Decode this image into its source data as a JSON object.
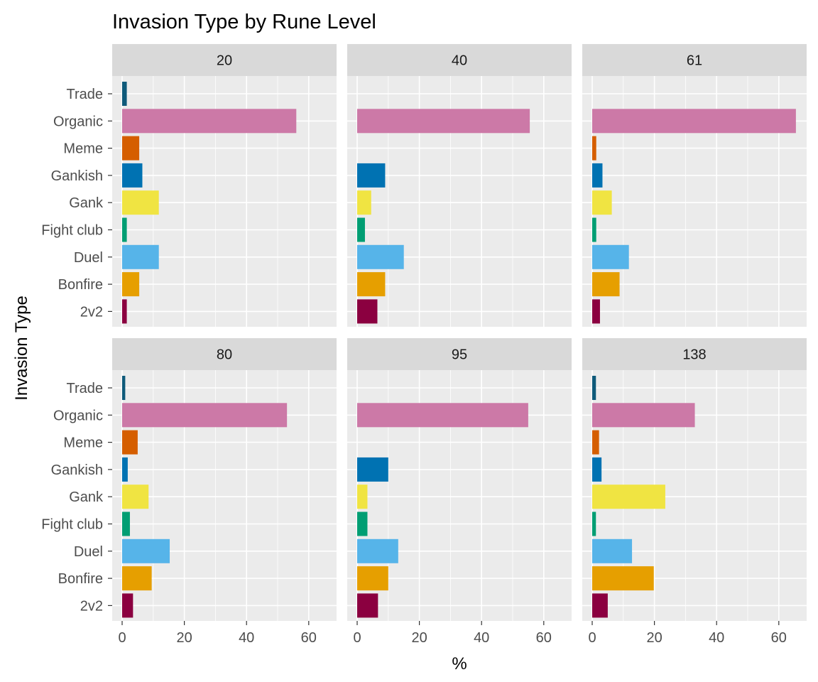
{
  "chart_data": {
    "type": "bar",
    "orientation": "horizontal",
    "title": "Invasion Type by Rune Level",
    "xlabel": "%",
    "ylabel": "Invasion Type",
    "xlim": [
      0,
      70
    ],
    "xticks": [
      0,
      20,
      40,
      60
    ],
    "grid": true,
    "legend": "none",
    "facet_ncol": 3,
    "categories": [
      "Trade",
      "Organic",
      "Meme",
      "Gankish",
      "Gank",
      "Fight club",
      "Duel",
      "Bonfire",
      "2v2"
    ],
    "colors": {
      "Trade": "#0F5A7A",
      "Organic": "#CC79A7",
      "Meme": "#D55E00",
      "Gankish": "#0072B2",
      "Gank": "#F0E442",
      "Fight club": "#009E73",
      "Duel": "#56B4E9",
      "Bonfire": "#E69F00",
      "2v2": "#8B0040"
    },
    "panels": [
      {
        "label": "20",
        "values": [
          1.5,
          56.0,
          5.5,
          6.5,
          11.8,
          1.5,
          11.8,
          5.5,
          1.5
        ]
      },
      {
        "label": "40",
        "values": [
          0,
          55.5,
          0,
          9.0,
          4.5,
          2.5,
          15.0,
          9.0,
          6.5
        ]
      },
      {
        "label": "61",
        "values": [
          0,
          65.5,
          1.3,
          3.3,
          6.3,
          1.3,
          11.8,
          8.8,
          2.5
        ]
      },
      {
        "label": "80",
        "values": [
          1.0,
          53.0,
          5.0,
          1.8,
          8.5,
          2.5,
          15.3,
          9.5,
          3.5
        ]
      },
      {
        "label": "95",
        "values": [
          0,
          55.0,
          0,
          10.0,
          3.3,
          3.3,
          13.2,
          10.0,
          6.7
        ]
      },
      {
        "label": "138",
        "values": [
          1.2,
          33.0,
          2.2,
          3.0,
          23.5,
          1.2,
          12.8,
          19.8,
          5.0
        ]
      }
    ]
  }
}
